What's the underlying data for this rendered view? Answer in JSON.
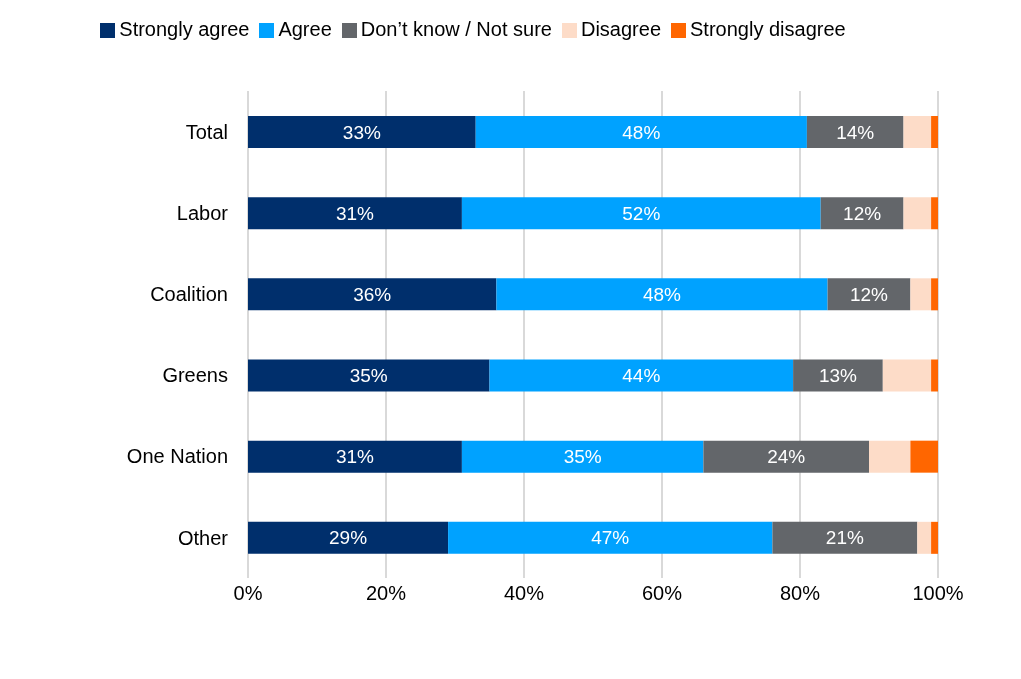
{
  "chart_data": {
    "type": "bar",
    "orientation": "horizontal",
    "stacked": true,
    "categories": [
      "Total",
      "Labor",
      "Coalition",
      "Greens",
      "One Nation",
      "Other"
    ],
    "series": [
      {
        "name": "Strongly agree",
        "color": "#002f6c",
        "values": [
          33,
          31,
          36,
          35,
          31,
          29
        ],
        "value_labels": [
          "33%",
          "31%",
          "36%",
          "35%",
          "31%",
          "29%"
        ]
      },
      {
        "name": "Agree",
        "color": "#00a2ff",
        "values": [
          48,
          52,
          48,
          44,
          35,
          47
        ],
        "value_labels": [
          "48%",
          "52%",
          "48%",
          "44%",
          "35%",
          "47%"
        ]
      },
      {
        "name": "Don’t know / Not sure",
        "color": "#63666a",
        "values": [
          14,
          12,
          12,
          13,
          24,
          21
        ],
        "value_labels": [
          "14%",
          "12%",
          "12%",
          "13%",
          "24%",
          "21%"
        ]
      },
      {
        "name": "Disagree",
        "color": "#fddcc8",
        "values": [
          4,
          4,
          3,
          7,
          6,
          2
        ]
      },
      {
        "name": "Strongly disagree",
        "color": "#ff6600",
        "values": [
          1,
          1,
          1,
          1,
          4,
          1
        ]
      }
    ],
    "xlim": [
      0,
      100
    ],
    "xticks": [
      {
        "value": 0,
        "label": "0%"
      },
      {
        "value": 20,
        "label": "20%"
      },
      {
        "value": 40,
        "label": "40%"
      },
      {
        "value": 60,
        "label": "60%"
      },
      {
        "value": 80,
        "label": "80%"
      },
      {
        "value": 100,
        "label": "100%"
      }
    ],
    "grid": "x",
    "legend": "top"
  }
}
